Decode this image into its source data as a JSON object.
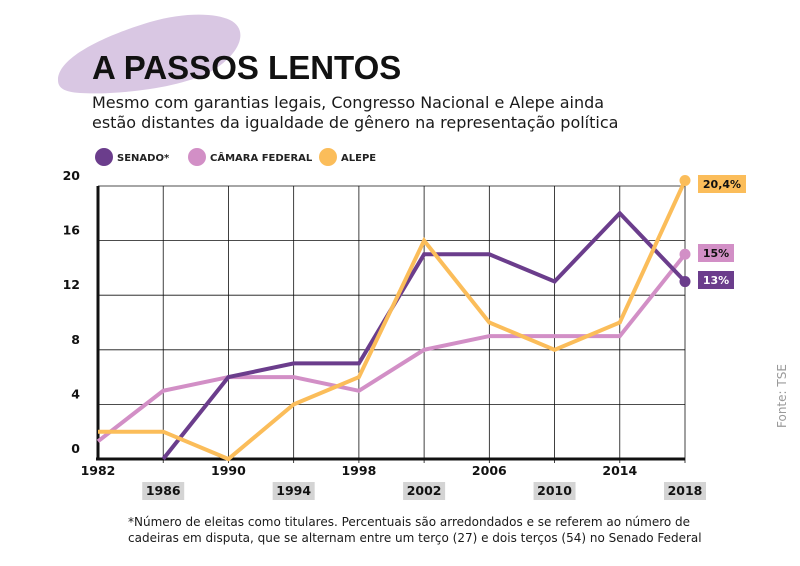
{
  "header": {
    "title": "A PASSOS LENTOS",
    "subtitle_line1": "Mesmo com garantias legais, Congresso Nacional e Alepe ainda",
    "subtitle_line2": "estão distantes da igualdade de gênero na representação política"
  },
  "colors": {
    "senado": "#6b3d8c",
    "camara": "#d28fc6",
    "alepe": "#fbbd5a",
    "title_blob": "#d9c7e3",
    "tick_box": "#d4d4d4"
  },
  "chart_data": {
    "type": "line",
    "x": [
      1982,
      1986,
      1990,
      1994,
      1998,
      2002,
      2006,
      2010,
      2014,
      2018
    ],
    "x_tick_labels": [
      "1982",
      "1986",
      "1990",
      "1994",
      "1998",
      "2002",
      "2006",
      "2010",
      "2014",
      "2018"
    ],
    "y_tick_labels": [
      "0",
      "4",
      "8",
      "12",
      "16",
      "20"
    ],
    "ylim": [
      0,
      20
    ],
    "grid": true,
    "legend_position": "top-left",
    "series": [
      {
        "key": "senado",
        "name": "SENADO*",
        "values": [
          null,
          0,
          6,
          7,
          7,
          15,
          15,
          13,
          18,
          13
        ],
        "end_label": "13%"
      },
      {
        "key": "camara",
        "name": "CÂMARA FEDERAL",
        "values": [
          1.3,
          5,
          6,
          6,
          5,
          8,
          9,
          9,
          9,
          15
        ],
        "end_label": "15%"
      },
      {
        "key": "alepe",
        "name": "ALEPE",
        "values": [
          2,
          2,
          0,
          4,
          6,
          16,
          10,
          8,
          10,
          20.4
        ],
        "end_label": "20,4%"
      }
    ]
  },
  "footnote": {
    "line1": "*Número de eleitas como titulares. Percentuais são arredondados e se referem ao número de",
    "line2": "cadeiras em disputa, que se alternam entre um terço (27) e dois terços (54) no Senado Federal"
  },
  "source": "Fonte: TSE"
}
